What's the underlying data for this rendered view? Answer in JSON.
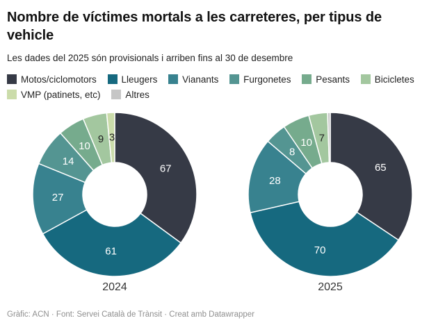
{
  "header": {
    "title": "Nombre de víctimes mortals a les carreteres, per tipus de vehicle",
    "subtitle": "Les dades del 2025 són provisionals i arriben fins al 30 de desembre"
  },
  "chart_data": {
    "type": "pie",
    "subtype": "double-donut",
    "title": "Nombre de víctimes mortals a les carreteres, per tipus de vehicle",
    "categories": [
      "Motos/ciclomotors",
      "Lleugers",
      "Vianants",
      "Furgonetes",
      "Pesants",
      "Bicicletes",
      "VMP (patinets, etc)",
      "Altres"
    ],
    "colors": [
      "#363a46",
      "#16697f",
      "#38828f",
      "#549592",
      "#76ab8d",
      "#a3c79f",
      "#cbdcaa",
      "#c6c6c6"
    ],
    "label_text_colors": [
      "#ffffff",
      "#ffffff",
      "#ffffff",
      "#ffffff",
      "#ffffff",
      "#222222",
      "#222222",
      "#222222"
    ],
    "series": [
      {
        "name": "2024",
        "values": [
          67,
          61,
          27,
          14,
          10,
          9,
          3,
          0
        ]
      },
      {
        "name": "2025",
        "values": [
          65,
          70,
          28,
          8,
          10,
          7,
          0,
          1
        ]
      }
    ],
    "min_label_value": 3,
    "legend_position": "top",
    "donut_hole_ratio": 0.39,
    "start_angle_deg": -90,
    "direction": "clockwise"
  },
  "footer": {
    "text": "Gràfic: ACN · Font: Servei Català de Trànsit · Creat amb Datawrapper"
  }
}
